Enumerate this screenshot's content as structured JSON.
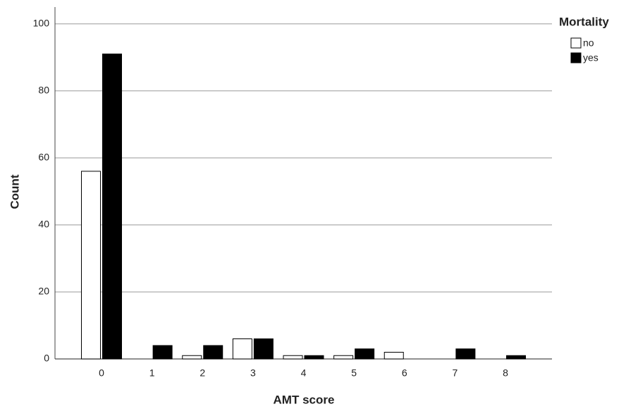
{
  "chart_data": {
    "type": "bar",
    "x_label": "AMT score",
    "y_label": "Count",
    "legend_title": "Mortality",
    "categories": [
      "0",
      "1",
      "2",
      "3",
      "4",
      "5",
      "6",
      "7",
      "8"
    ],
    "series": [
      {
        "name": "no",
        "color": "#ffffff",
        "values": [
          56,
          0,
          1,
          6,
          1,
          1,
          2,
          0,
          0
        ]
      },
      {
        "name": "yes",
        "color": "#000000",
        "values": [
          91,
          4,
          4,
          6,
          1,
          3,
          0,
          3,
          1
        ]
      }
    ],
    "ylim": [
      0,
      105
    ],
    "yticks": [
      0,
      20,
      40,
      60,
      80,
      100
    ],
    "grid": true,
    "legend": "right"
  }
}
